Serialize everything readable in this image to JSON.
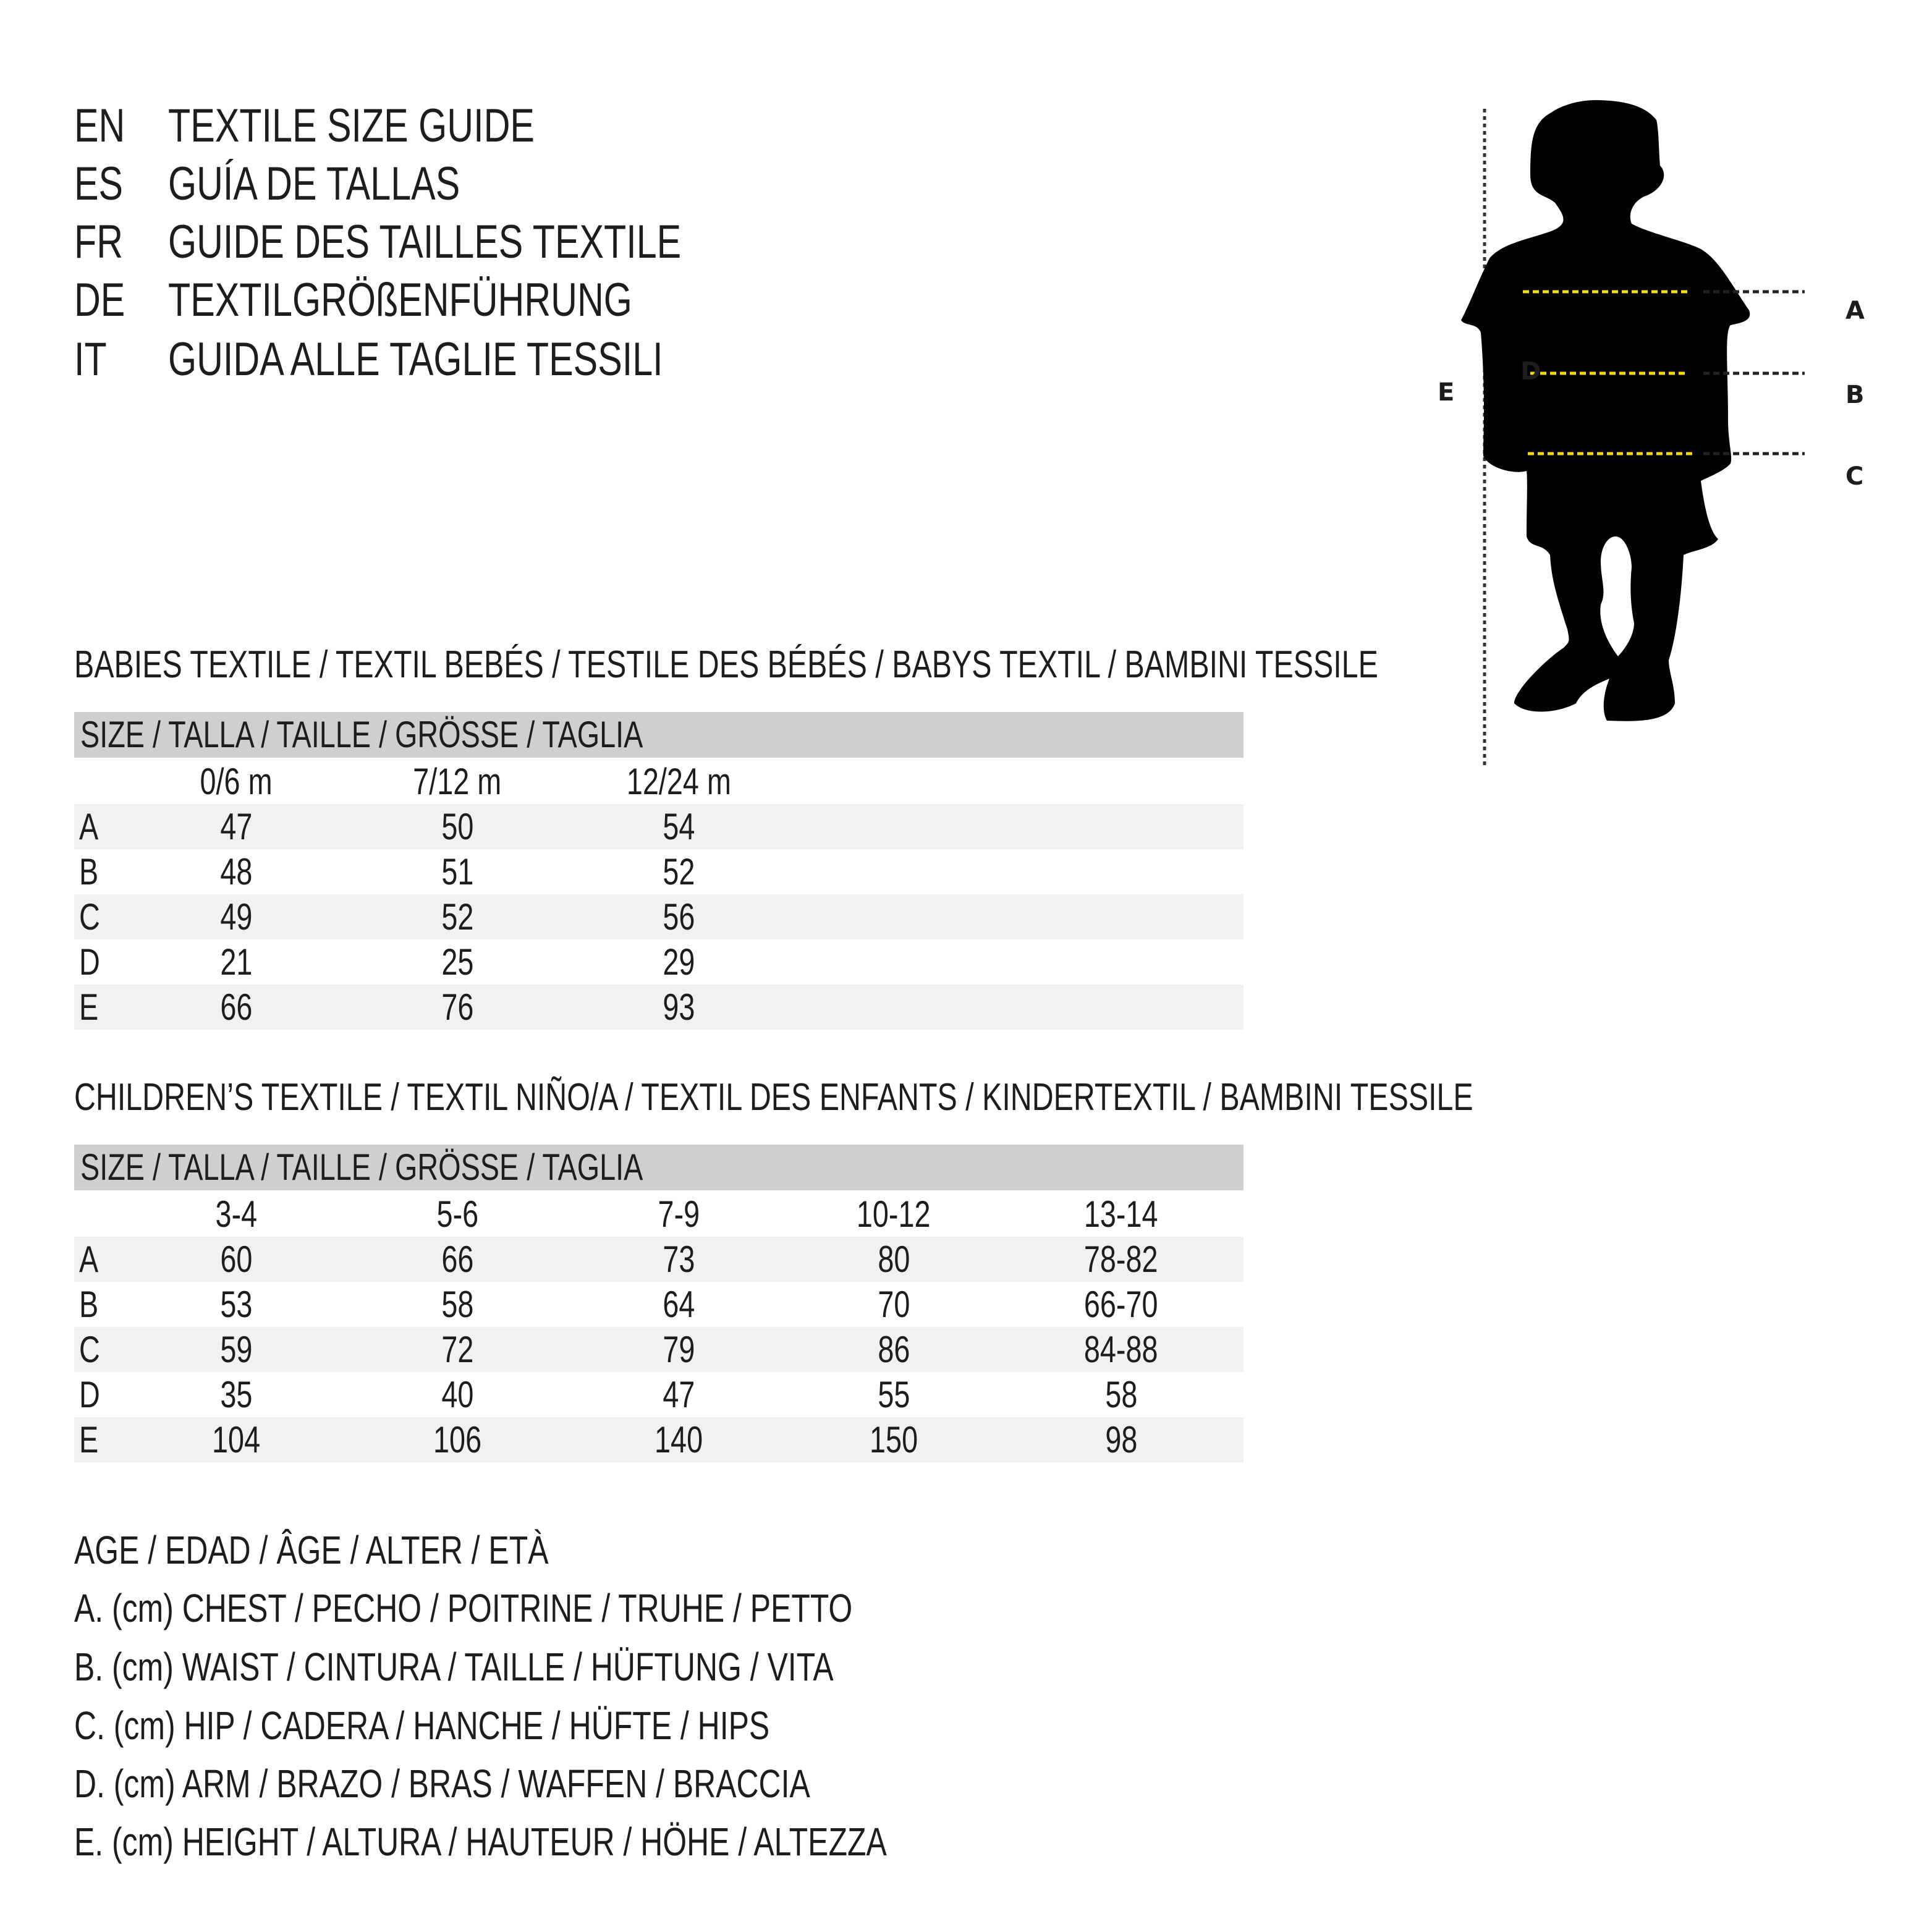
{
  "titles": [
    {
      "code": "EN",
      "text": "TEXTILE SIZE GUIDE"
    },
    {
      "code": "ES",
      "text": "GUÍA DE TALLAS"
    },
    {
      "code": "FR",
      "text": "GUIDE DES TAILLES TEXTILE"
    },
    {
      "code": "DE",
      "text": "TEXTILGRÖßENFÜHRUNG"
    },
    {
      "code": "IT",
      "text": "GUIDA ALLE TAGLIE TESSILI"
    }
  ],
  "figure": {
    "labels": {
      "a": "A",
      "b": "B",
      "c": "C",
      "d": "D",
      "e": "E"
    },
    "accent_color": "#f5d90a",
    "icon": "child-silhouette"
  },
  "babies": {
    "heading": "BABIES TEXTILE / TEXTIL BEBÉS / TESTILE DES BÉBÉS / BABYS TEXTIL / BAMBINI TESSILE",
    "size_header": "SIZE / TALLA / TAILLE / GRÖSSE / TAGLIA",
    "columns": [
      "0/6 m",
      "7/12 m",
      "12/24 m"
    ],
    "rows": [
      {
        "label": "A",
        "values": [
          "47",
          "50",
          "54"
        ]
      },
      {
        "label": "B",
        "values": [
          "48",
          "51",
          "52"
        ]
      },
      {
        "label": "C",
        "values": [
          "49",
          "52",
          "56"
        ]
      },
      {
        "label": "D",
        "values": [
          "21",
          "25",
          "29"
        ]
      },
      {
        "label": "E",
        "values": [
          "66",
          "76",
          "93"
        ]
      }
    ]
  },
  "children": {
    "heading": "CHILDREN’S TEXTILE / TEXTIL NIÑO/A / TEXTIL DES ENFANTS / KINDERTEXTIL / BAMBINI TESSILE",
    "size_header": "SIZE / TALLA / TAILLE / GRÖSSE / TAGLIA",
    "columns": [
      "3-4",
      "5-6",
      "7-9",
      "10-12",
      "13-14"
    ],
    "rows": [
      {
        "label": "A",
        "values": [
          "60",
          "66",
          "73",
          "80",
          "78-82"
        ]
      },
      {
        "label": "B",
        "values": [
          "53",
          "58",
          "64",
          "70",
          "66-70"
        ]
      },
      {
        "label": "C",
        "values": [
          "59",
          "72",
          "79",
          "86",
          "84-88"
        ]
      },
      {
        "label": "D",
        "values": [
          "35",
          "40",
          "47",
          "55",
          "58"
        ]
      },
      {
        "label": "E",
        "values": [
          "104",
          "106",
          "140",
          "150",
          "98"
        ]
      }
    ]
  },
  "legend": [
    "AGE / EDAD / ÂGE / ALTER / ETÀ",
    "A. (cm) CHEST / PECHO / POITRINE / TRUHE / PETTO",
    "B. (cm) WAIST / CINTURA / TAILLE / HÜFTUNG / VITA",
    "C. (cm) HIP / CADERA / HANCHE / HÜFTE / HIPS",
    "D. (cm) ARM / BRAZO / BRAS / WAFFEN / BRACCIA",
    "E. (cm) HEIGHT / ALTURA / HAUTEUR / HÖHE / ALTEZZA"
  ]
}
